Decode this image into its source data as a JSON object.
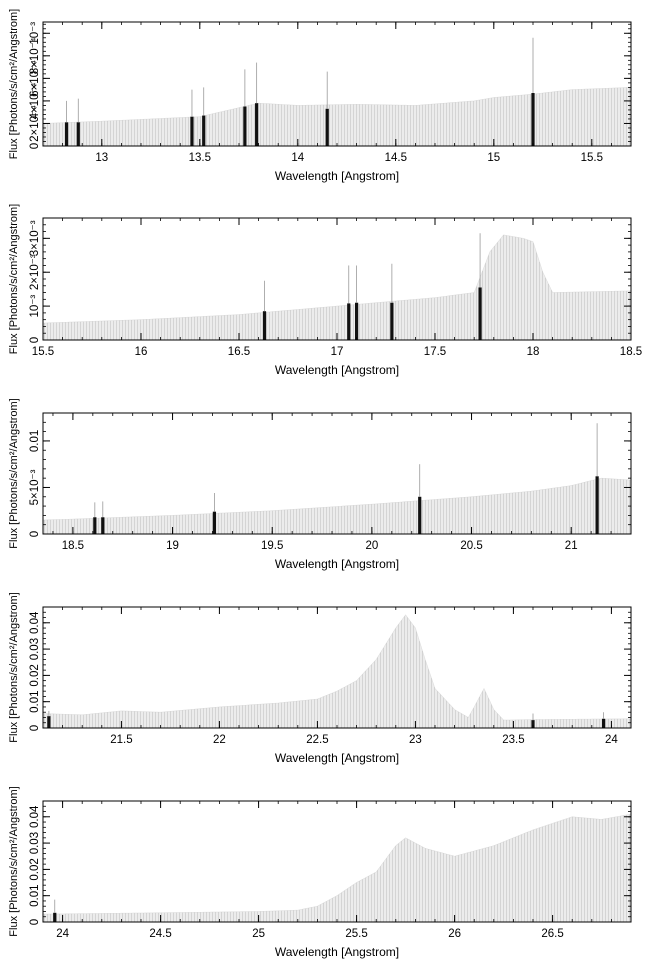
{
  "chart_data": [
    {
      "type": "bar",
      "xlabel": "Wavelength [Angstrom]",
      "ylabel": "Flux [Photons/s/cm²/Angstrom]",
      "xlim": [
        12.7,
        15.7
      ],
      "ylim": [
        0,
        0.0011
      ],
      "xticks": [
        13,
        13.5,
        14,
        14.5,
        15,
        15.5
      ],
      "xtick_labels": [
        "13",
        "13.5",
        "14",
        "14.5",
        "15",
        "15.5"
      ],
      "yticks": [
        0,
        0.0002,
        0.0004,
        0.0006,
        0.0008,
        0.001
      ],
      "ytick_labels": [
        "0",
        "2×10⁻⁴",
        "4×10⁻⁴",
        "6×10⁻⁴",
        "8×10⁻⁴",
        "10⁻³"
      ],
      "continuum": [
        [
          12.7,
          0.0002
        ],
        [
          13.0,
          0.00022
        ],
        [
          13.5,
          0.00026
        ],
        [
          13.8,
          0.00038
        ],
        [
          14.0,
          0.00036
        ],
        [
          14.3,
          0.00037
        ],
        [
          14.6,
          0.00036
        ],
        [
          14.9,
          0.0004
        ],
        [
          15.0,
          0.00043
        ],
        [
          15.2,
          0.00046
        ],
        [
          15.4,
          0.0005
        ],
        [
          15.7,
          0.00052
        ]
      ],
      "lines": [
        {
          "x": 12.82,
          "y": 0.00021,
          "err": 0.00019
        },
        {
          "x": 12.88,
          "y": 0.00021,
          "err": 0.00021
        },
        {
          "x": 13.46,
          "y": 0.00026,
          "err": 0.00024
        },
        {
          "x": 13.52,
          "y": 0.00027,
          "err": 0.00025
        },
        {
          "x": 13.73,
          "y": 0.00035,
          "err": 0.00033
        },
        {
          "x": 13.79,
          "y": 0.00038,
          "err": 0.00036
        },
        {
          "x": 14.15,
          "y": 0.00033,
          "err": 0.00033
        },
        {
          "x": 15.2,
          "y": 0.00047,
          "err": 0.00049
        }
      ]
    },
    {
      "type": "bar",
      "xlabel": "Wavelength [Angstrom]",
      "ylabel": "Flux [Photons/s/cm²/Angstrom]",
      "xlim": [
        15.5,
        18.5
      ],
      "ylim": [
        0,
        0.0036
      ],
      "xticks": [
        15.5,
        16,
        16.5,
        17,
        17.5,
        18,
        18.5
      ],
      "xtick_labels": [
        "15.5",
        "16",
        "16.5",
        "17",
        "17.5",
        "18",
        "18.5"
      ],
      "yticks": [
        0,
        0.001,
        0.002,
        0.003
      ],
      "ytick_labels": [
        "0",
        "10⁻³",
        "2×10⁻³",
        "3×10⁻³"
      ],
      "continuum": [
        [
          15.5,
          0.0005
        ],
        [
          16.0,
          0.0006
        ],
        [
          16.5,
          0.00075
        ],
        [
          17.0,
          0.001
        ],
        [
          17.5,
          0.00125
        ],
        [
          17.7,
          0.0014
        ],
        [
          17.78,
          0.0026
        ],
        [
          17.85,
          0.0031
        ],
        [
          17.95,
          0.003
        ],
        [
          18.0,
          0.0029
        ],
        [
          18.05,
          0.002
        ],
        [
          18.1,
          0.0014
        ],
        [
          18.5,
          0.00145
        ]
      ],
      "lines": [
        {
          "x": 16.63,
          "y": 0.00085,
          "err": 0.0009
        },
        {
          "x": 17.06,
          "y": 0.00108,
          "err": 0.00112
        },
        {
          "x": 17.1,
          "y": 0.0011,
          "err": 0.0011
        },
        {
          "x": 17.28,
          "y": 0.0011,
          "err": 0.00115
        },
        {
          "x": 17.73,
          "y": 0.00155,
          "err": 0.0016
        }
      ]
    },
    {
      "type": "bar",
      "xlabel": "Wavelength [Angstrom]",
      "ylabel": "Flux [Photons/s/cm²/Angstrom]",
      "xlim": [
        18.35,
        21.3
      ],
      "ylim": [
        0,
        0.013
      ],
      "xticks": [
        18.5,
        19,
        19.5,
        20,
        20.5,
        21
      ],
      "xtick_labels": [
        "18.5",
        "19",
        "19.5",
        "20",
        "20.5",
        "21"
      ],
      "yticks": [
        0,
        0.005,
        0.01
      ],
      "ytick_labels": [
        "0",
        "5×10⁻³",
        "0.01"
      ],
      "continuum": [
        [
          18.35,
          0.0015
        ],
        [
          18.5,
          0.0016
        ],
        [
          19.0,
          0.002
        ],
        [
          19.5,
          0.0025
        ],
        [
          20.0,
          0.0032
        ],
        [
          20.5,
          0.004
        ],
        [
          20.8,
          0.0046
        ],
        [
          21.0,
          0.0052
        ],
        [
          21.15,
          0.006
        ],
        [
          21.3,
          0.0058
        ]
      ],
      "lines": [
        {
          "x": 18.61,
          "y": 0.0018,
          "err": 0.0016
        },
        {
          "x": 18.65,
          "y": 0.0018,
          "err": 0.0017
        },
        {
          "x": 19.21,
          "y": 0.0024,
          "err": 0.002
        },
        {
          "x": 20.24,
          "y": 0.004,
          "err": 0.0035
        },
        {
          "x": 21.13,
          "y": 0.0062,
          "err": 0.0057
        }
      ]
    },
    {
      "type": "bar",
      "xlabel": "Wavelength [Angstrom]",
      "ylabel": "Flux [Photons/s/cm²/Angstrom]",
      "xlim": [
        21.1,
        24.1
      ],
      "ylim": [
        0,
        0.046
      ],
      "xticks": [
        21.5,
        22,
        22.5,
        23,
        23.5,
        24
      ],
      "xtick_labels": [
        "21.5",
        "22",
        "22.5",
        "23",
        "23.5",
        "24"
      ],
      "yticks": [
        0,
        0.01,
        0.02,
        0.03,
        0.04
      ],
      "ytick_labels": [
        "0",
        "0.01",
        "0.02",
        "0.03",
        "0.04"
      ],
      "continuum": [
        [
          21.1,
          0.0055
        ],
        [
          21.3,
          0.005
        ],
        [
          21.5,
          0.0065
        ],
        [
          21.7,
          0.006
        ],
        [
          22.0,
          0.008
        ],
        [
          22.3,
          0.0095
        ],
        [
          22.5,
          0.011
        ],
        [
          22.6,
          0.014
        ],
        [
          22.7,
          0.018
        ],
        [
          22.8,
          0.026
        ],
        [
          22.9,
          0.038
        ],
        [
          22.95,
          0.043
        ],
        [
          23.0,
          0.038
        ],
        [
          23.05,
          0.026
        ],
        [
          23.1,
          0.015
        ],
        [
          23.2,
          0.007
        ],
        [
          23.27,
          0.004
        ],
        [
          23.3,
          0.008
        ],
        [
          23.35,
          0.015
        ],
        [
          23.4,
          0.007
        ],
        [
          23.45,
          0.003
        ],
        [
          23.6,
          0.0032
        ],
        [
          24.1,
          0.0035
        ]
      ],
      "lines": [
        {
          "x": 21.13,
          "y": 0.0045,
          "err": 0.002
        },
        {
          "x": 23.6,
          "y": 0.003,
          "err": 0.0025
        },
        {
          "x": 23.96,
          "y": 0.0035,
          "err": 0.0025
        }
      ]
    },
    {
      "type": "bar",
      "xlabel": "Wavelength [Angstrom]",
      "ylabel": "Flux [Photons/s/cm²/Angstrom]",
      "xlim": [
        23.9,
        26.9
      ],
      "ylim": [
        0,
        0.046
      ],
      "xticks": [
        24,
        24.5,
        25,
        25.5,
        26,
        26.5
      ],
      "xtick_labels": [
        "24",
        "24.5",
        "25",
        "25.5",
        "26",
        "26.5"
      ],
      "yticks": [
        0,
        0.01,
        0.02,
        0.03,
        0.04
      ],
      "ytick_labels": [
        "0",
        "0.01",
        "0.02",
        "0.03",
        "0.04"
      ],
      "continuum": [
        [
          23.9,
          0.003
        ],
        [
          24.5,
          0.0035
        ],
        [
          25.0,
          0.004
        ],
        [
          25.2,
          0.0045
        ],
        [
          25.3,
          0.006
        ],
        [
          25.4,
          0.01
        ],
        [
          25.5,
          0.015
        ],
        [
          25.6,
          0.019
        ],
        [
          25.7,
          0.029
        ],
        [
          25.75,
          0.032
        ],
        [
          25.85,
          0.028
        ],
        [
          26.0,
          0.025
        ],
        [
          26.2,
          0.029
        ],
        [
          26.4,
          0.035
        ],
        [
          26.6,
          0.04
        ],
        [
          26.75,
          0.039
        ],
        [
          26.9,
          0.041
        ]
      ],
      "lines": [
        {
          "x": 23.96,
          "y": 0.0035,
          "err": 0.005
        }
      ]
    }
  ]
}
